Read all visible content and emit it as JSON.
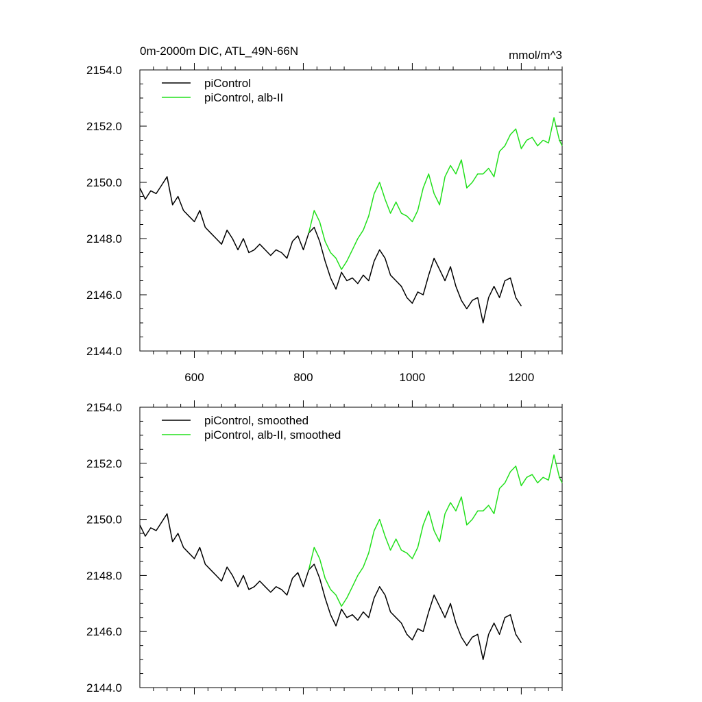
{
  "title": "0m-2000m DIC, ATL_49N-66N",
  "units": "mmol/m^3",
  "chart_data": [
    {
      "type": "line",
      "panel": "top",
      "title": "0m-2000m DIC, ATL_49N-66N",
      "units_label": "mmol/m^3",
      "xlim": [
        500,
        1275
      ],
      "ylim": [
        2144.0,
        2154.0
      ],
      "x_ticks": [
        600,
        800,
        1000,
        1200
      ],
      "x_tick_labels": [
        "600",
        "800",
        "1000",
        "1200"
      ],
      "y_ticks": [
        2144.0,
        2146.0,
        2148.0,
        2150.0,
        2152.0,
        2154.0
      ],
      "y_tick_labels": [
        "2144.0",
        "2146.0",
        "2148.0",
        "2150.0",
        "2152.0",
        "2154.0"
      ],
      "legend_position": "top-left",
      "series": [
        {
          "name": "piControl",
          "color": "#000000",
          "x": [
            500,
            510,
            520,
            530,
            540,
            550,
            560,
            570,
            580,
            590,
            600,
            610,
            620,
            630,
            640,
            650,
            660,
            670,
            680,
            690,
            700,
            710,
            720,
            730,
            740,
            750,
            760,
            770,
            780,
            790,
            800,
            810,
            820,
            830,
            840,
            850,
            860,
            870,
            880,
            890,
            900,
            910,
            920,
            930,
            940,
            950,
            960,
            970,
            980,
            990,
            1000,
            1010,
            1020,
            1030,
            1040,
            1050,
            1060,
            1070,
            1080,
            1090,
            1100,
            1110,
            1120,
            1130,
            1140,
            1150,
            1160,
            1170,
            1180,
            1190,
            1200
          ],
          "y": [
            2149.8,
            2149.4,
            2149.7,
            2149.6,
            2149.9,
            2150.2,
            2149.2,
            2149.5,
            2149.0,
            2148.8,
            2148.6,
            2149.0,
            2148.4,
            2148.2,
            2148.0,
            2147.8,
            2148.3,
            2148.0,
            2147.6,
            2148.0,
            2147.5,
            2147.6,
            2147.8,
            2147.6,
            2147.4,
            2147.6,
            2147.5,
            2147.3,
            2147.9,
            2148.1,
            2147.6,
            2148.2,
            2148.4,
            2147.9,
            2147.2,
            2146.6,
            2146.2,
            2146.8,
            2146.5,
            2146.6,
            2146.4,
            2146.7,
            2146.5,
            2147.2,
            2147.6,
            2147.3,
            2146.7,
            2146.5,
            2146.3,
            2145.9,
            2145.7,
            2146.1,
            2146.0,
            2146.7,
            2147.3,
            2146.9,
            2146.5,
            2147.0,
            2146.3,
            2145.8,
            2145.5,
            2145.8,
            2145.9,
            2145.0,
            2145.9,
            2146.3,
            2145.9,
            2146.5,
            2146.6,
            2145.9,
            2145.6
          ]
        },
        {
          "name": "piControl, alb-II",
          "color": "#22e01c",
          "x": [
            810,
            820,
            830,
            840,
            850,
            860,
            870,
            880,
            890,
            900,
            910,
            920,
            930,
            940,
            950,
            960,
            970,
            980,
            990,
            1000,
            1010,
            1020,
            1030,
            1040,
            1050,
            1060,
            1070,
            1080,
            1090,
            1100,
            1110,
            1120,
            1130,
            1140,
            1150,
            1160,
            1170,
            1180,
            1190,
            1200,
            1210,
            1220,
            1230,
            1240,
            1250,
            1260,
            1270,
            1275
          ],
          "y": [
            2148.2,
            2149.0,
            2148.6,
            2147.9,
            2147.5,
            2147.3,
            2146.9,
            2147.2,
            2147.6,
            2148.0,
            2148.3,
            2148.8,
            2149.6,
            2150.0,
            2149.4,
            2148.9,
            2149.3,
            2148.9,
            2148.8,
            2148.6,
            2149.0,
            2149.8,
            2150.3,
            2149.6,
            2149.2,
            2150.2,
            2150.6,
            2150.3,
            2150.8,
            2149.8,
            2150.0,
            2150.3,
            2150.3,
            2150.5,
            2150.2,
            2151.1,
            2151.3,
            2151.7,
            2151.9,
            2151.2,
            2151.5,
            2151.6,
            2151.3,
            2151.5,
            2151.4,
            2152.3,
            2151.5,
            2151.3
          ]
        }
      ]
    },
    {
      "type": "line",
      "panel": "bottom",
      "xlim": [
        500,
        1275
      ],
      "ylim": [
        2144.0,
        2154.0
      ],
      "x_ticks": [
        600,
        800,
        1000,
        1200
      ],
      "y_ticks": [
        2144.0,
        2146.0,
        2148.0,
        2150.0,
        2152.0,
        2154.0
      ],
      "y_tick_labels": [
        "2144.0",
        "2146.0",
        "2148.0",
        "2150.0",
        "2152.0",
        "2154.0"
      ],
      "legend_position": "top-left",
      "series": [
        {
          "name": "piControl, smoothed",
          "color": "#000000",
          "x": [
            500,
            510,
            520,
            530,
            540,
            550,
            560,
            570,
            580,
            590,
            600,
            610,
            620,
            630,
            640,
            650,
            660,
            670,
            680,
            690,
            700,
            710,
            720,
            730,
            740,
            750,
            760,
            770,
            780,
            790,
            800,
            810,
            820,
            830,
            840,
            850,
            860,
            870,
            880,
            890,
            900,
            910,
            920,
            930,
            940,
            950,
            960,
            970,
            980,
            990,
            1000,
            1010,
            1020,
            1030,
            1040,
            1050,
            1060,
            1070,
            1080,
            1090,
            1100,
            1110,
            1120,
            1130,
            1140,
            1150,
            1160,
            1170,
            1180,
            1190,
            1200
          ],
          "y": [
            2149.8,
            2149.4,
            2149.7,
            2149.6,
            2149.9,
            2150.2,
            2149.2,
            2149.5,
            2149.0,
            2148.8,
            2148.6,
            2149.0,
            2148.4,
            2148.2,
            2148.0,
            2147.8,
            2148.3,
            2148.0,
            2147.6,
            2148.0,
            2147.5,
            2147.6,
            2147.8,
            2147.6,
            2147.4,
            2147.6,
            2147.5,
            2147.3,
            2147.9,
            2148.1,
            2147.6,
            2148.2,
            2148.4,
            2147.9,
            2147.2,
            2146.6,
            2146.2,
            2146.8,
            2146.5,
            2146.6,
            2146.4,
            2146.7,
            2146.5,
            2147.2,
            2147.6,
            2147.3,
            2146.7,
            2146.5,
            2146.3,
            2145.9,
            2145.7,
            2146.1,
            2146.0,
            2146.7,
            2147.3,
            2146.9,
            2146.5,
            2147.0,
            2146.3,
            2145.8,
            2145.5,
            2145.8,
            2145.9,
            2145.0,
            2145.9,
            2146.3,
            2145.9,
            2146.5,
            2146.6,
            2145.9,
            2145.6
          ]
        },
        {
          "name": "piControl, alb-II, smoothed",
          "color": "#22e01c",
          "x": [
            810,
            820,
            830,
            840,
            850,
            860,
            870,
            880,
            890,
            900,
            910,
            920,
            930,
            940,
            950,
            960,
            970,
            980,
            990,
            1000,
            1010,
            1020,
            1030,
            1040,
            1050,
            1060,
            1070,
            1080,
            1090,
            1100,
            1110,
            1120,
            1130,
            1140,
            1150,
            1160,
            1170,
            1180,
            1190,
            1200,
            1210,
            1220,
            1230,
            1240,
            1250,
            1260,
            1270,
            1275
          ],
          "y": [
            2148.2,
            2149.0,
            2148.6,
            2147.9,
            2147.5,
            2147.3,
            2146.9,
            2147.2,
            2147.6,
            2148.0,
            2148.3,
            2148.8,
            2149.6,
            2150.0,
            2149.4,
            2148.9,
            2149.3,
            2148.9,
            2148.8,
            2148.6,
            2149.0,
            2149.8,
            2150.3,
            2149.6,
            2149.2,
            2150.2,
            2150.6,
            2150.3,
            2150.8,
            2149.8,
            2150.0,
            2150.3,
            2150.3,
            2150.5,
            2150.2,
            2151.1,
            2151.3,
            2151.7,
            2151.9,
            2151.2,
            2151.5,
            2151.6,
            2151.3,
            2151.5,
            2151.4,
            2152.3,
            2151.5,
            2151.3
          ]
        }
      ]
    }
  ]
}
